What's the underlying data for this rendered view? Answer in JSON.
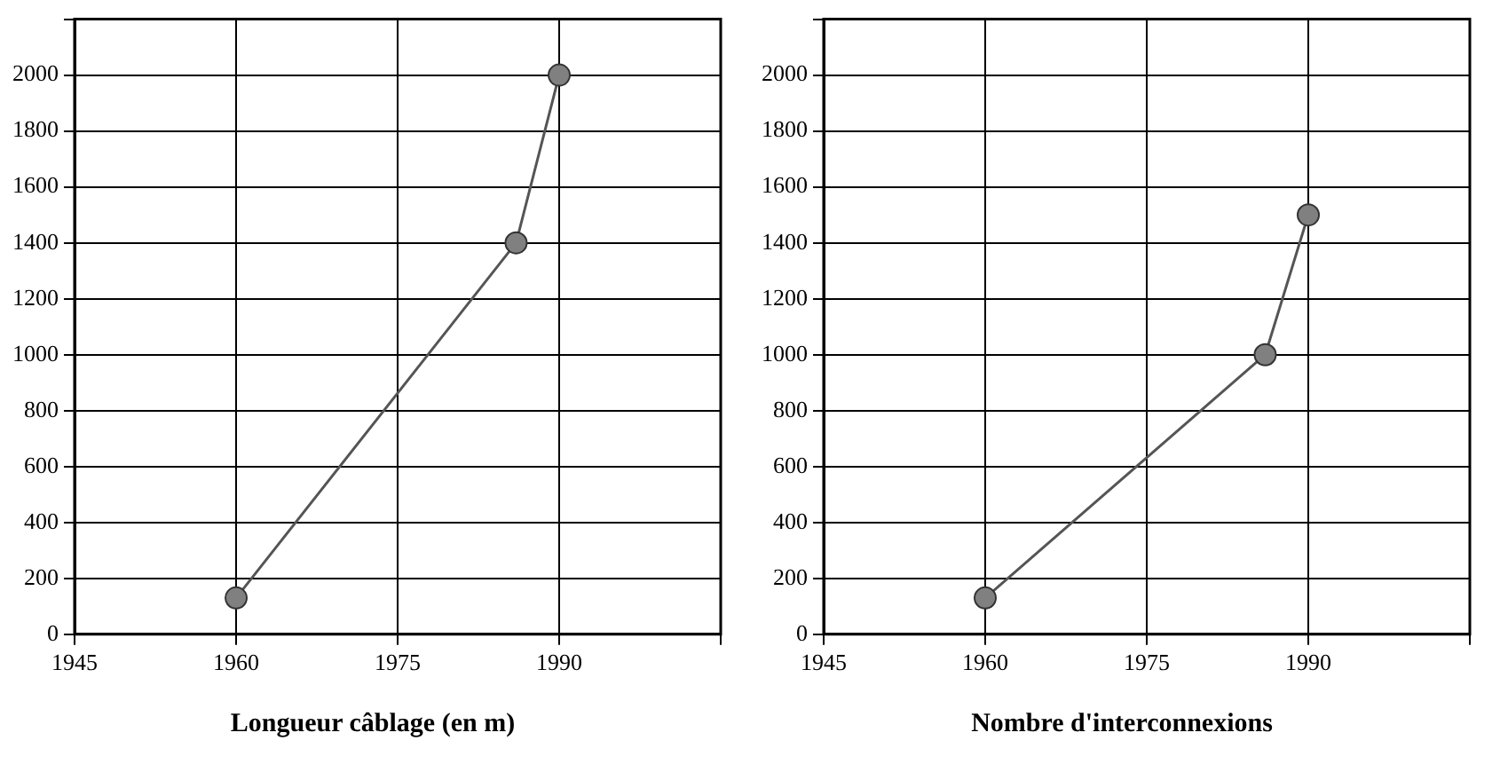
{
  "chart_data": [
    {
      "type": "line",
      "xlabel": "Longueur câblage (en m)",
      "x": [
        1960,
        1986,
        1990
      ],
      "series": [
        {
          "color": "#808080",
          "values": [
            130,
            1400,
            2000
          ]
        }
      ],
      "xlim": [
        1945,
        2005
      ],
      "xticks": [
        1945,
        1960,
        1975,
        1990,
        {
          "value": 2005,
          "label": null
        }
      ],
      "ylim": [
        0,
        2200
      ],
      "yticks": [
        0,
        200,
        400,
        600,
        800,
        1000,
        1200,
        1400,
        1600,
        1800,
        2000,
        {
          "value": 2200,
          "label": null
        }
      ],
      "grid": true,
      "legend": false,
      "marker": "circle",
      "line_style": "solid"
    },
    {
      "type": "line",
      "xlabel": "Nombre d'interconnexions",
      "x": [
        1960,
        1986,
        1990
      ],
      "series": [
        {
          "color": "#808080",
          "values": [
            130,
            1000,
            1500
          ]
        }
      ],
      "xlim": [
        1945,
        2005
      ],
      "xticks": [
        1945,
        1960,
        1975,
        1990,
        {
          "value": 2005,
          "label": null
        }
      ],
      "ylim": [
        0,
        2200
      ],
      "yticks": [
        0,
        200,
        400,
        600,
        800,
        1000,
        1200,
        1400,
        1600,
        1800,
        2000,
        {
          "value": 2200,
          "label": null
        }
      ],
      "grid": true,
      "legend": false,
      "marker": "circle",
      "line_style": "solid"
    }
  ]
}
